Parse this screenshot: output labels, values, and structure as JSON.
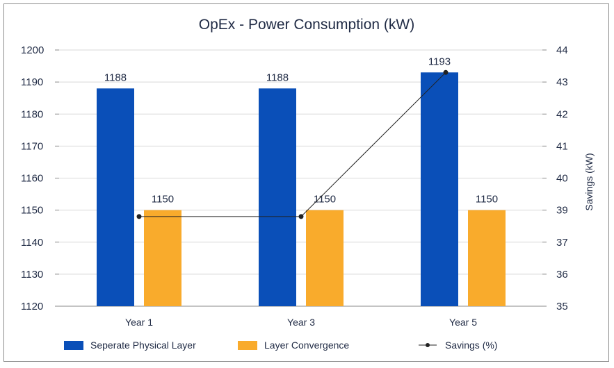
{
  "chart_data": {
    "type": "bar",
    "title": "OpEx - Power Consumption (kW)",
    "categories": [
      "Year 1",
      "Year 3",
      "Year 5"
    ],
    "series": [
      {
        "name": "Seperate Physical Layer",
        "type": "bar",
        "axis": "left",
        "color": "#0a4fb8",
        "values": [
          1188,
          1188,
          1193
        ]
      },
      {
        "name": "Layer Convergence",
        "type": "bar",
        "axis": "left",
        "color": "#f9ab2c",
        "values": [
          1150,
          1150,
          1150
        ]
      },
      {
        "name": "Savings (%)",
        "type": "line",
        "axis": "right",
        "color": "#222222",
        "values": [
          38,
          38,
          43
        ]
      }
    ],
    "left_axis": {
      "ylim": [
        1120,
        1200
      ],
      "ticks": [
        "1200",
        "1190",
        "1180",
        "1170",
        "1160",
        "1150",
        "1140",
        "1130",
        "1120"
      ]
    },
    "right_axis": {
      "label": "Savings (kW)",
      "ticks": [
        "44",
        "43",
        "42",
        "41",
        "40",
        "39",
        "37",
        "36",
        "35"
      ]
    },
    "grid": true,
    "legend_position": "bottom"
  }
}
